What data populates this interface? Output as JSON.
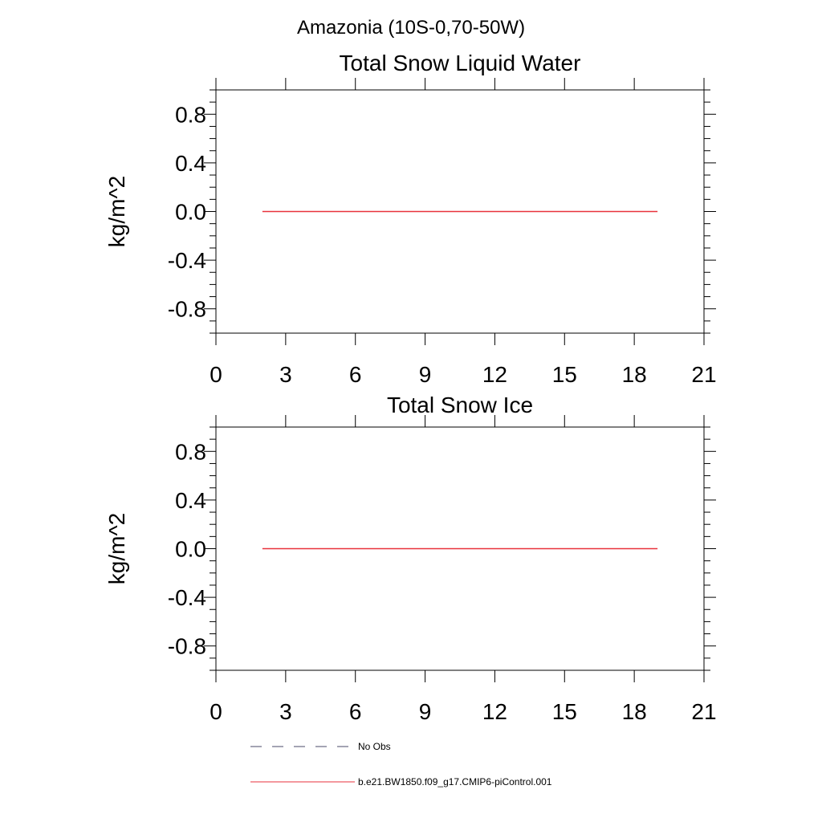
{
  "header": {
    "title": "Amazonia (10S-0,70-50W)"
  },
  "chart_data": [
    {
      "type": "line",
      "title": "Total Snow Liquid Water",
      "ylabel": "kg/m^2",
      "xlabel": "",
      "xlim": [
        0,
        21
      ],
      "ylim": [
        -1.0,
        1.0
      ],
      "x_ticks": [
        0,
        3,
        6,
        9,
        12,
        15,
        18,
        21
      ],
      "x_tick_labels": [
        "0",
        "3",
        "6",
        "9",
        "12",
        "15",
        "18",
        "21"
      ],
      "y_ticks": [
        -0.8,
        -0.4,
        0.0,
        0.4,
        0.8
      ],
      "y_tick_labels": [
        "-0.8",
        "-0.4",
        "0.0",
        "0.4",
        "0.8"
      ],
      "grid": false,
      "series": [
        {
          "name": "b.e21.BW1850.f09_g17.CMIP6-piControl.001",
          "color": "#e8323c",
          "x": [
            2,
            19
          ],
          "y": [
            0.0,
            0.0
          ]
        }
      ]
    },
    {
      "type": "line",
      "title": "Total Snow Ice",
      "ylabel": "kg/m^2",
      "xlabel": "",
      "xlim": [
        0,
        21
      ],
      "ylim": [
        -1.0,
        1.0
      ],
      "x_ticks": [
        0,
        3,
        6,
        9,
        12,
        15,
        18,
        21
      ],
      "x_tick_labels": [
        "0",
        "3",
        "6",
        "9",
        "12",
        "15",
        "18",
        "21"
      ],
      "y_ticks": [
        -0.8,
        -0.4,
        0.0,
        0.4,
        0.8
      ],
      "y_tick_labels": [
        "-0.8",
        "-0.4",
        "0.0",
        "0.4",
        "0.8"
      ],
      "grid": false,
      "series": [
        {
          "name": "b.e21.BW1850.f09_g17.CMIP6-piControl.001",
          "color": "#e8323c",
          "x": [
            2,
            19
          ],
          "y": [
            0.0,
            0.0
          ]
        }
      ]
    }
  ],
  "legend": {
    "placement": "bottom-left",
    "items": [
      {
        "label": "No Obs",
        "color": "#4a4a6a",
        "style": "dashed"
      },
      {
        "label": "b.e21.BW1850.f09_g17.CMIP6-piControl.001",
        "color": "#e8323c",
        "style": "solid"
      }
    ]
  }
}
